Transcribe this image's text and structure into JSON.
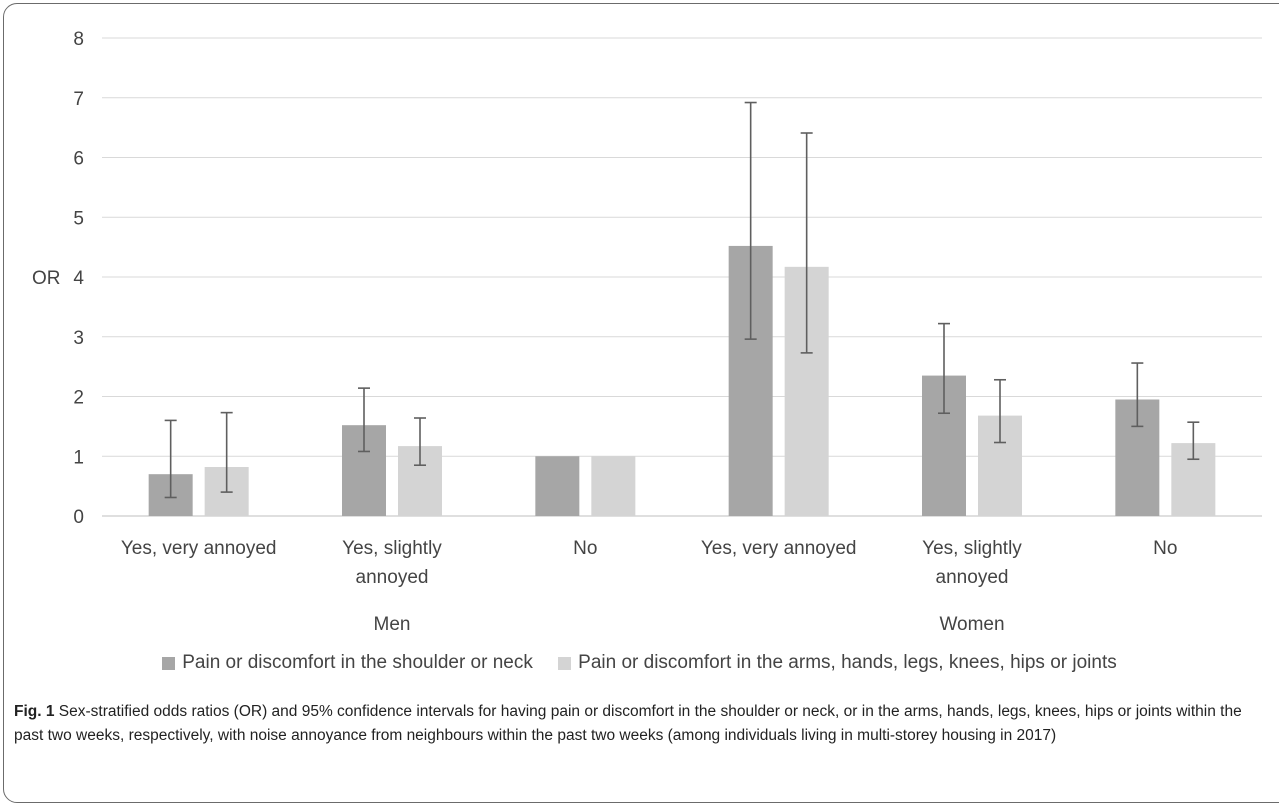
{
  "chart_data": {
    "type": "bar",
    "ylabel": "OR",
    "ylim": [
      0,
      8
    ],
    "yticks": [
      "0",
      "1",
      "2",
      "3",
      "4",
      "5",
      "6",
      "7",
      "8"
    ],
    "grid": true,
    "legend_position": "bottom",
    "groups": [
      {
        "label": "Men",
        "categories": [
          "Yes, very annoyed",
          "Yes, slightly annoyed",
          "No"
        ]
      },
      {
        "label": "Women",
        "categories": [
          "Yes, very annoyed",
          "Yes, slightly annoyed",
          "No"
        ]
      }
    ],
    "categories": [
      "Yes, very annoyed",
      "Yes, slightly annoyed",
      "No",
      "Yes, very annoyed",
      "Yes, slightly annoyed",
      "No"
    ],
    "series": [
      {
        "name": "Pain or discomfort in the shoulder or neck",
        "color": "#a6a6a6",
        "values": [
          0.7,
          1.52,
          1.0,
          4.52,
          2.35,
          1.95
        ],
        "ci_low": [
          0.31,
          1.08,
          null,
          2.96,
          1.72,
          1.5
        ],
        "ci_high": [
          1.6,
          2.14,
          null,
          6.92,
          3.22,
          2.56
        ]
      },
      {
        "name": "Pain or discomfort in the arms, hands, legs, knees, hips or joints",
        "color": "#d4d4d4",
        "values": [
          0.82,
          1.17,
          1.0,
          4.17,
          1.68,
          1.22
        ],
        "ci_low": [
          0.4,
          0.85,
          null,
          2.73,
          1.23,
          0.95
        ],
        "ci_high": [
          1.73,
          1.64,
          null,
          6.41,
          2.28,
          1.57
        ]
      }
    ]
  },
  "caption": {
    "label": "Fig. 1",
    "text": "Sex-stratified odds ratios (OR) and 95% confidence intervals for having pain or discomfort in the shoulder or neck, or in the arms, hands, legs, knees, hips or joints within the past two weeks, respectively, with noise annoyance from neighbours within the past two weeks (among individuals living in multi-storey housing in 2017)"
  }
}
